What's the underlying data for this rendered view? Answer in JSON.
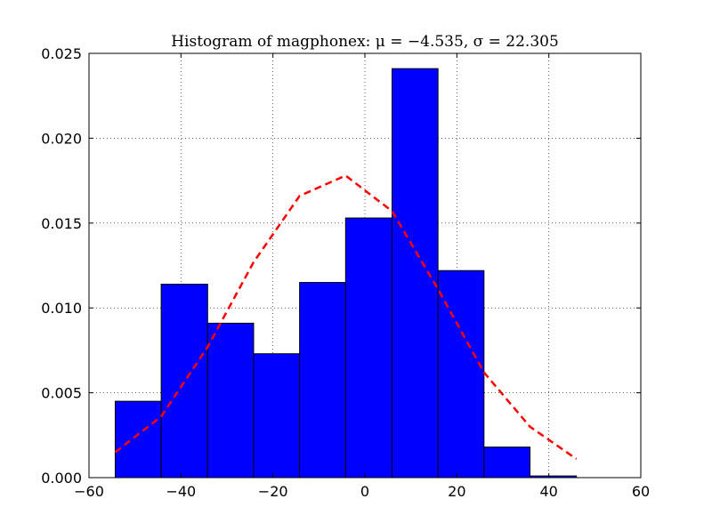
{
  "chart_data": {
    "type": "bar",
    "title": "Histogram of magphonex:  μ = −4.535,  σ = 22.305",
    "xlabel": "",
    "ylabel": "",
    "xlim": [
      -60,
      60
    ],
    "ylim": [
      0,
      0.025
    ],
    "x_ticks": [
      -60,
      -40,
      -20,
      0,
      20,
      40,
      60
    ],
    "x_tick_labels": [
      "−60",
      "−40",
      "−20",
      "0",
      "20",
      "40",
      "60"
    ],
    "y_ticks": [
      0.0,
      0.005,
      0.01,
      0.015,
      0.02,
      0.025
    ],
    "y_tick_labels": [
      "0.000",
      "0.005",
      "0.010",
      "0.015",
      "0.020",
      "0.025"
    ],
    "grid": true,
    "bin_edges": [
      -54.3,
      -44.3,
      -34.2,
      -24.2,
      -14.2,
      -4.2,
      5.9,
      15.9,
      25.9,
      35.9,
      46.0
    ],
    "values": [
      0.0045,
      0.0114,
      0.0091,
      0.0073,
      0.0115,
      0.0153,
      0.0241,
      0.0122,
      0.0018,
      0.0001
    ],
    "bar_color": "#0000ff",
    "fit_curve": {
      "style": "dashed",
      "color": "#ff0000",
      "x": [
        -54.3,
        -44.3,
        -34.2,
        -24.2,
        -14.2,
        -4.2,
        5.9,
        15.9,
        25.9,
        35.9,
        46.0
      ],
      "y": [
        0.0015,
        0.0036,
        0.0077,
        0.0127,
        0.0166,
        0.0178,
        0.0157,
        0.0111,
        0.0062,
        0.003,
        0.0011
      ]
    }
  }
}
